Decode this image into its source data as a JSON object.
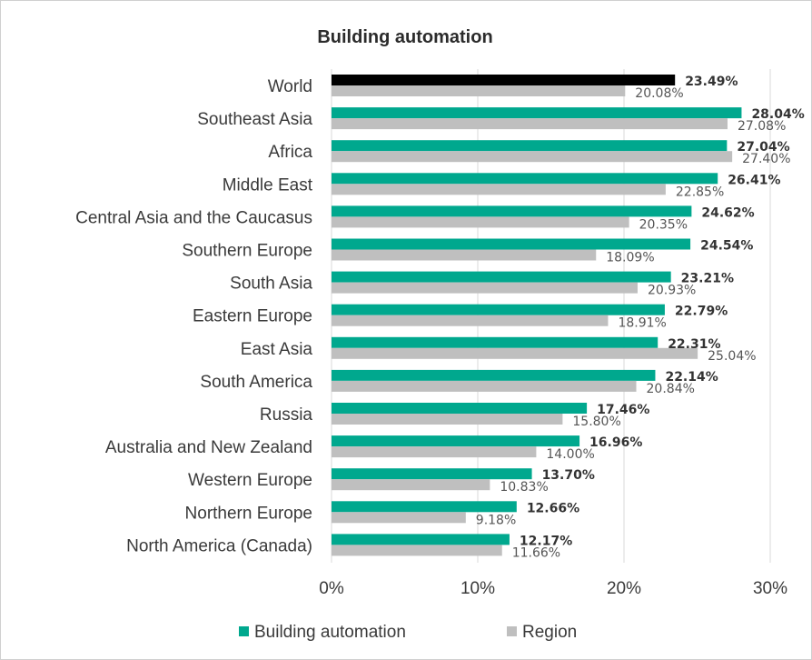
{
  "chart_data": {
    "type": "bar",
    "orientation": "horizontal",
    "title": "Building automation",
    "categories": [
      "World",
      "Southeast Asia",
      "Africa",
      "Middle East",
      "Central Asia and the Caucasus",
      "Southern Europe",
      "South Asia",
      "Eastern Europe",
      "East Asia",
      "South America",
      "Russia",
      "Australia and New Zealand",
      "Western Europe",
      "Northern Europe",
      "North America (Canada)"
    ],
    "series": [
      {
        "name": "Building automation",
        "values": [
          23.49,
          28.04,
          27.04,
          26.41,
          24.62,
          24.54,
          23.21,
          22.79,
          22.31,
          22.14,
          17.46,
          16.96,
          13.7,
          12.66,
          12.17
        ],
        "labels": [
          "23.49%",
          "28.04%",
          "27.04%",
          "26.41%",
          "24.62%",
          "24.54%",
          "23.21%",
          "22.79%",
          "22.31%",
          "22.14%",
          "17.46%",
          "16.96%",
          "13.70%",
          "12.66%",
          "12.17%"
        ]
      },
      {
        "name": "Region",
        "values": [
          20.08,
          27.08,
          27.4,
          22.85,
          20.35,
          18.09,
          20.93,
          18.91,
          25.04,
          20.84,
          15.8,
          14.0,
          10.83,
          9.18,
          11.66
        ],
        "labels": [
          "20.08%",
          "27.08%",
          "27.40%",
          "22.85%",
          "20.35%",
          "18.09%",
          "20.93%",
          "18.91%",
          "25.04%",
          "20.84%",
          "15.80%",
          "14.00%",
          "10.83%",
          "9.18%",
          "11.66%"
        ]
      }
    ],
    "xlim": [
      0,
      30
    ],
    "xticks": [
      "0%",
      "10%",
      "20%",
      "30%"
    ],
    "grid": true,
    "legend": "bottom",
    "colors": {
      "building_automation": "#00a88e",
      "world_highlight": "#000000",
      "region": "#bfbfbf",
      "grid": "#d9d9d9"
    }
  }
}
